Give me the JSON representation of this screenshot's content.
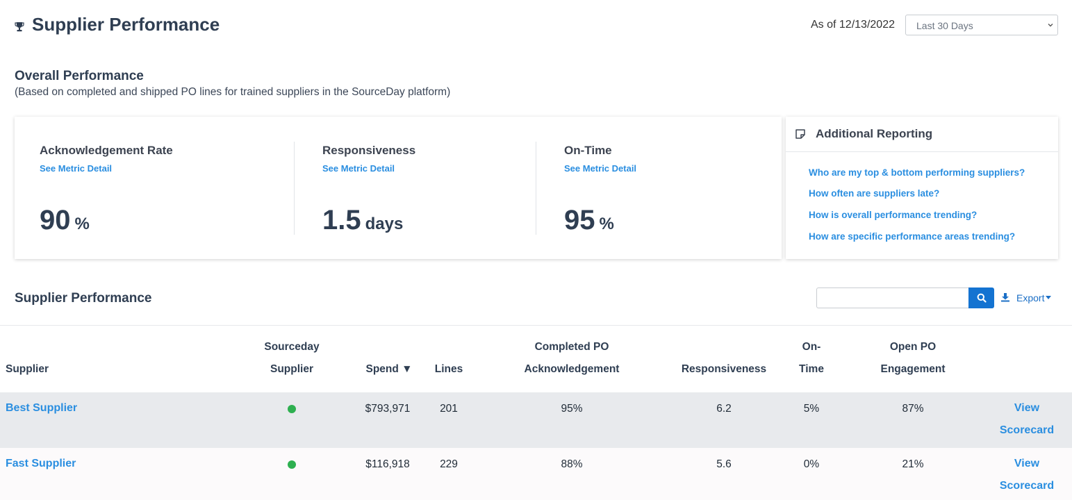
{
  "header": {
    "title": "Supplier Performance",
    "icon": "trophy-icon",
    "as_of": "As of 12/13/2022",
    "date_range": {
      "selected": "Last 30 Days"
    }
  },
  "overall": {
    "title": "Overall Performance",
    "subtitle": "(Based on completed and shipped PO lines for trained suppliers in the SourceDay platform)",
    "metrics": [
      {
        "label": "Acknowledgement Rate",
        "link": "See Metric Detail",
        "value": "90",
        "unit": "%"
      },
      {
        "label": "Responsiveness",
        "link": "See Metric Detail",
        "value": "1.5",
        "unit": "days"
      },
      {
        "label": "On-Time",
        "link": "See Metric Detail",
        "value": "95",
        "unit": "%"
      }
    ]
  },
  "reporting": {
    "title": "Additional Reporting",
    "icon": "note-icon",
    "links": [
      "Who are my top & bottom performing suppliers?",
      "How often are suppliers late?",
      "How is overall performance trending?",
      "How are specific performance areas trending?"
    ]
  },
  "supplier_section": {
    "title": "Supplier Performance",
    "search": {
      "value": "",
      "placeholder": ""
    },
    "export_label": "Export"
  },
  "table": {
    "columns": {
      "supplier": [
        "",
        "Supplier"
      ],
      "sourceday": [
        "Sourceday",
        "Supplier"
      ],
      "spend": [
        "",
        "Spend ▼"
      ],
      "lines": [
        "",
        "Lines"
      ],
      "ack": [
        "Completed PO",
        "Acknowledgement"
      ],
      "resp": [
        "",
        "Responsiveness"
      ],
      "ontime": [
        "On-",
        "Time"
      ],
      "engage": [
        "Open PO",
        "Engagement"
      ]
    },
    "rows": [
      {
        "supplier": "Best Supplier",
        "spend": "$793,971",
        "lines": "201",
        "ack": "95%",
        "resp": "6.2",
        "ontime": "5%",
        "engage": "87%",
        "view_1": "View",
        "view_2": "Scorecard",
        "status_color": "#2eb050"
      },
      {
        "supplier": "Fast Supplier",
        "spend": "$116,918",
        "lines": "229",
        "ack": "88%",
        "resp": "5.6",
        "ontime": "0%",
        "engage": "21%",
        "view_1": "View",
        "view_2": "Scorecard",
        "status_color": "#2eb050"
      }
    ]
  }
}
